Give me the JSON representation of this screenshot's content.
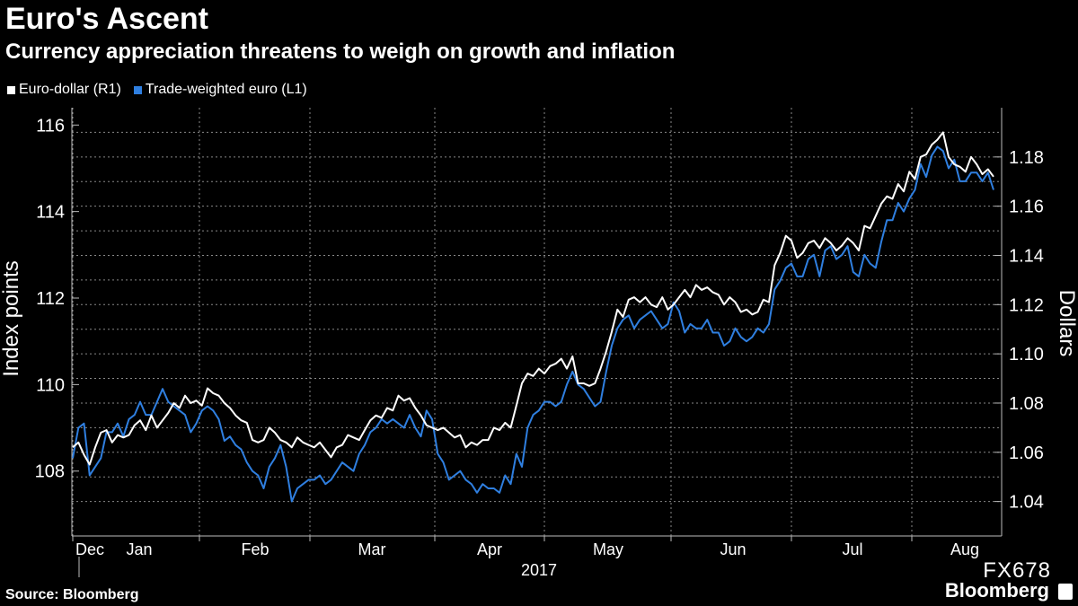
{
  "header": {
    "title": "Euro's Ascent",
    "subtitle": "Currency appreciation threatens to weigh on growth and inflation"
  },
  "footer": {
    "source": "Source: Bloomberg",
    "code": "FX678",
    "brand": "Bloomberg"
  },
  "colors": {
    "background": "#000000",
    "eurodollar": "#ffffff",
    "twi": "#2f7fe0",
    "grid": "#888888"
  },
  "chart_data": {
    "type": "line",
    "title": "Euro's Ascent",
    "subtitle": "Currency appreciation threatens to weigh on growth and inflation",
    "xlabel": "2017",
    "ylabel_left": "Index points",
    "ylabel_right": "Dollars",
    "ylim_left": [
      106.5,
      116.4
    ],
    "ylim_right": [
      1.026,
      1.2
    ],
    "left_ticks": [
      "108",
      "110",
      "112",
      "114",
      "116"
    ],
    "right_ticks": [
      "1.04",
      "1.06",
      "1.08",
      "1.10",
      "1.12",
      "1.14",
      "1.16",
      "1.18"
    ],
    "month_labels": [
      "Dec",
      "Jan",
      "Feb",
      "Mar",
      "Apr",
      "May",
      "Jun",
      "Jul",
      "Aug"
    ],
    "legend_position": "top-left",
    "grid": true,
    "series": [
      {
        "name": "Euro-dollar (R1)",
        "axis": "right",
        "color": "#ffffff",
        "values": [
          1.062,
          1.064,
          1.059,
          1.055,
          1.062,
          1.068,
          1.069,
          1.064,
          1.067,
          1.066,
          1.067,
          1.071,
          1.073,
          1.069,
          1.075,
          1.07,
          1.073,
          1.076,
          1.08,
          1.078,
          1.083,
          1.08,
          1.081,
          1.079,
          1.086,
          1.084,
          1.083,
          1.08,
          1.078,
          1.075,
          1.073,
          1.072,
          1.065,
          1.064,
          1.065,
          1.07,
          1.068,
          1.065,
          1.064,
          1.062,
          1.066,
          1.064,
          1.063,
          1.062,
          1.064,
          1.061,
          1.058,
          1.062,
          1.063,
          1.067,
          1.066,
          1.065,
          1.069,
          1.073,
          1.075,
          1.074,
          1.078,
          1.077,
          1.083,
          1.081,
          1.082,
          1.078,
          1.075,
          1.071,
          1.07,
          1.069,
          1.07,
          1.068,
          1.066,
          1.067,
          1.062,
          1.064,
          1.063,
          1.065,
          1.065,
          1.07,
          1.069,
          1.072,
          1.07,
          1.079,
          1.088,
          1.092,
          1.091,
          1.094,
          1.092,
          1.095,
          1.096,
          1.098,
          1.094,
          1.099,
          1.088,
          1.088,
          1.087,
          1.088,
          1.094,
          1.101,
          1.109,
          1.118,
          1.115,
          1.122,
          1.123,
          1.121,
          1.123,
          1.12,
          1.119,
          1.123,
          1.118,
          1.12,
          1.123,
          1.126,
          1.123,
          1.128,
          1.126,
          1.127,
          1.125,
          1.124,
          1.12,
          1.123,
          1.121,
          1.117,
          1.118,
          1.116,
          1.117,
          1.122,
          1.121,
          1.136,
          1.141,
          1.148,
          1.146,
          1.139,
          1.141,
          1.145,
          1.146,
          1.143,
          1.147,
          1.145,
          1.142,
          1.144,
          1.147,
          1.145,
          1.142,
          1.152,
          1.151,
          1.156,
          1.161,
          1.164,
          1.163,
          1.169,
          1.166,
          1.174,
          1.171,
          1.18,
          1.181,
          1.185,
          1.187,
          1.19,
          1.18,
          1.177,
          1.176,
          1.174,
          1.18,
          1.177,
          1.173,
          1.175,
          1.172
        ]
      },
      {
        "name": "Trade-weighted euro (L1)",
        "axis": "left",
        "color": "#2f7fe0",
        "values": [
          108.3,
          109.0,
          109.1,
          107.9,
          108.1,
          108.3,
          108.9,
          108.9,
          109.1,
          108.8,
          109.2,
          109.3,
          109.6,
          109.3,
          109.3,
          109.6,
          109.9,
          109.6,
          109.5,
          109.4,
          109.3,
          108.9,
          109.1,
          109.4,
          109.5,
          109.4,
          109.2,
          108.7,
          108.8,
          108.6,
          108.5,
          108.2,
          108.0,
          107.9,
          107.6,
          108.1,
          108.3,
          108.6,
          108.1,
          107.3,
          107.6,
          107.7,
          107.8,
          107.8,
          107.9,
          107.7,
          107.8,
          108.0,
          108.2,
          108.1,
          108.0,
          108.4,
          108.6,
          108.9,
          109.0,
          109.2,
          109.1,
          109.2,
          109.1,
          109.0,
          109.3,
          109.0,
          108.8,
          109.4,
          109.2,
          108.4,
          108.2,
          107.8,
          107.9,
          108.0,
          107.8,
          107.7,
          107.5,
          107.7,
          107.6,
          107.6,
          107.5,
          107.9,
          107.7,
          108.4,
          108.1,
          109.0,
          109.3,
          109.4,
          109.6,
          109.6,
          109.5,
          109.6,
          110.0,
          110.3,
          110.0,
          109.9,
          109.7,
          109.5,
          109.6,
          110.3,
          110.9,
          111.3,
          111.5,
          111.6,
          111.3,
          111.5,
          111.6,
          111.7,
          111.5,
          111.3,
          111.4,
          111.9,
          111.7,
          111.2,
          111.4,
          111.3,
          111.3,
          111.5,
          111.2,
          111.2,
          110.9,
          111.0,
          111.3,
          111.1,
          111.0,
          111.1,
          111.3,
          111.2,
          111.4,
          112.2,
          112.4,
          112.7,
          112.8,
          112.5,
          112.5,
          112.9,
          113.0,
          112.5,
          113.1,
          113.2,
          112.9,
          113.0,
          113.2,
          112.6,
          112.5,
          113.0,
          112.8,
          112.7,
          113.3,
          113.8,
          113.8,
          114.2,
          114.0,
          114.3,
          114.5,
          115.1,
          114.8,
          115.3,
          115.5,
          115.4,
          115.0,
          115.2,
          114.7,
          114.7,
          114.9,
          114.9,
          114.7,
          114.9,
          114.5
        ]
      }
    ]
  }
}
